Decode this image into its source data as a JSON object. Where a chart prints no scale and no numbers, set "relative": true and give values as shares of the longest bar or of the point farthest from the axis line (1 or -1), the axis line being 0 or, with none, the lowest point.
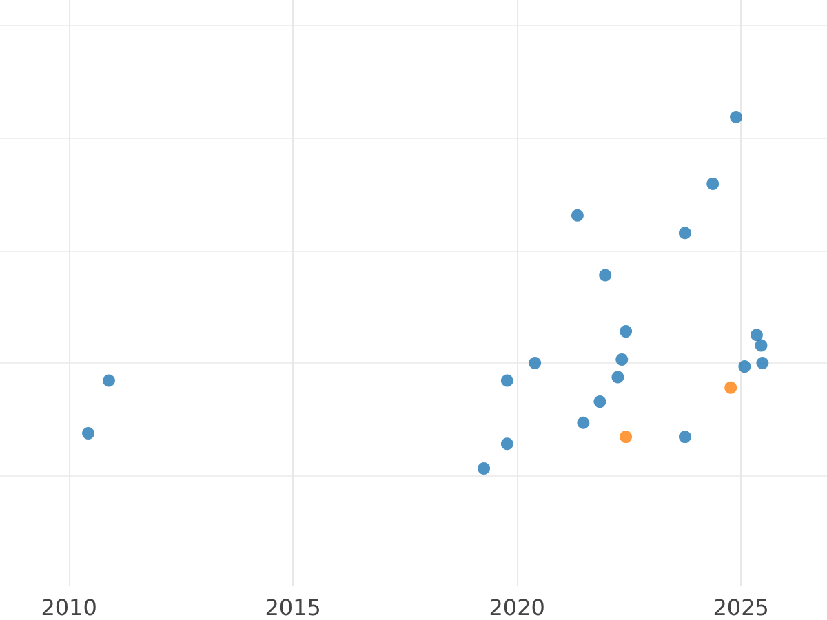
{
  "chart_data": {
    "type": "scatter",
    "relative": true,
    "marker": "circle",
    "grid": true,
    "xlim": [
      2008.46,
      2026.92
    ],
    "xticks": [
      2010,
      2015,
      2020,
      2025
    ],
    "series": [
      {
        "color": "#1f77b4",
        "x": [
          2010.43,
          2010.89,
          2019.26,
          2019.78,
          2019.78,
          2020.4,
          2021.35,
          2021.48,
          2021.85,
          2021.97,
          2022.25,
          2022.34,
          2022.43,
          2023.75,
          2023.75,
          2024.37,
          2024.89,
          2025.08,
          2025.35,
          2025.45,
          2025.48
        ],
        "values": [
          0.1,
          0.25,
          0,
          0.07,
          0.25,
          0.3,
          0.72,
          0.13,
          0.19,
          0.55,
          0.26,
          0.31,
          0.39,
          0.67,
          0.09,
          0.81,
          1,
          0.29,
          0.38,
          0.35,
          0.3
        ]
      },
      {
        "color": "#ff7f0e",
        "x": [
          2022.43,
          2024.77
        ],
        "values": [
          0.09,
          0.23
        ]
      }
    ]
  }
}
